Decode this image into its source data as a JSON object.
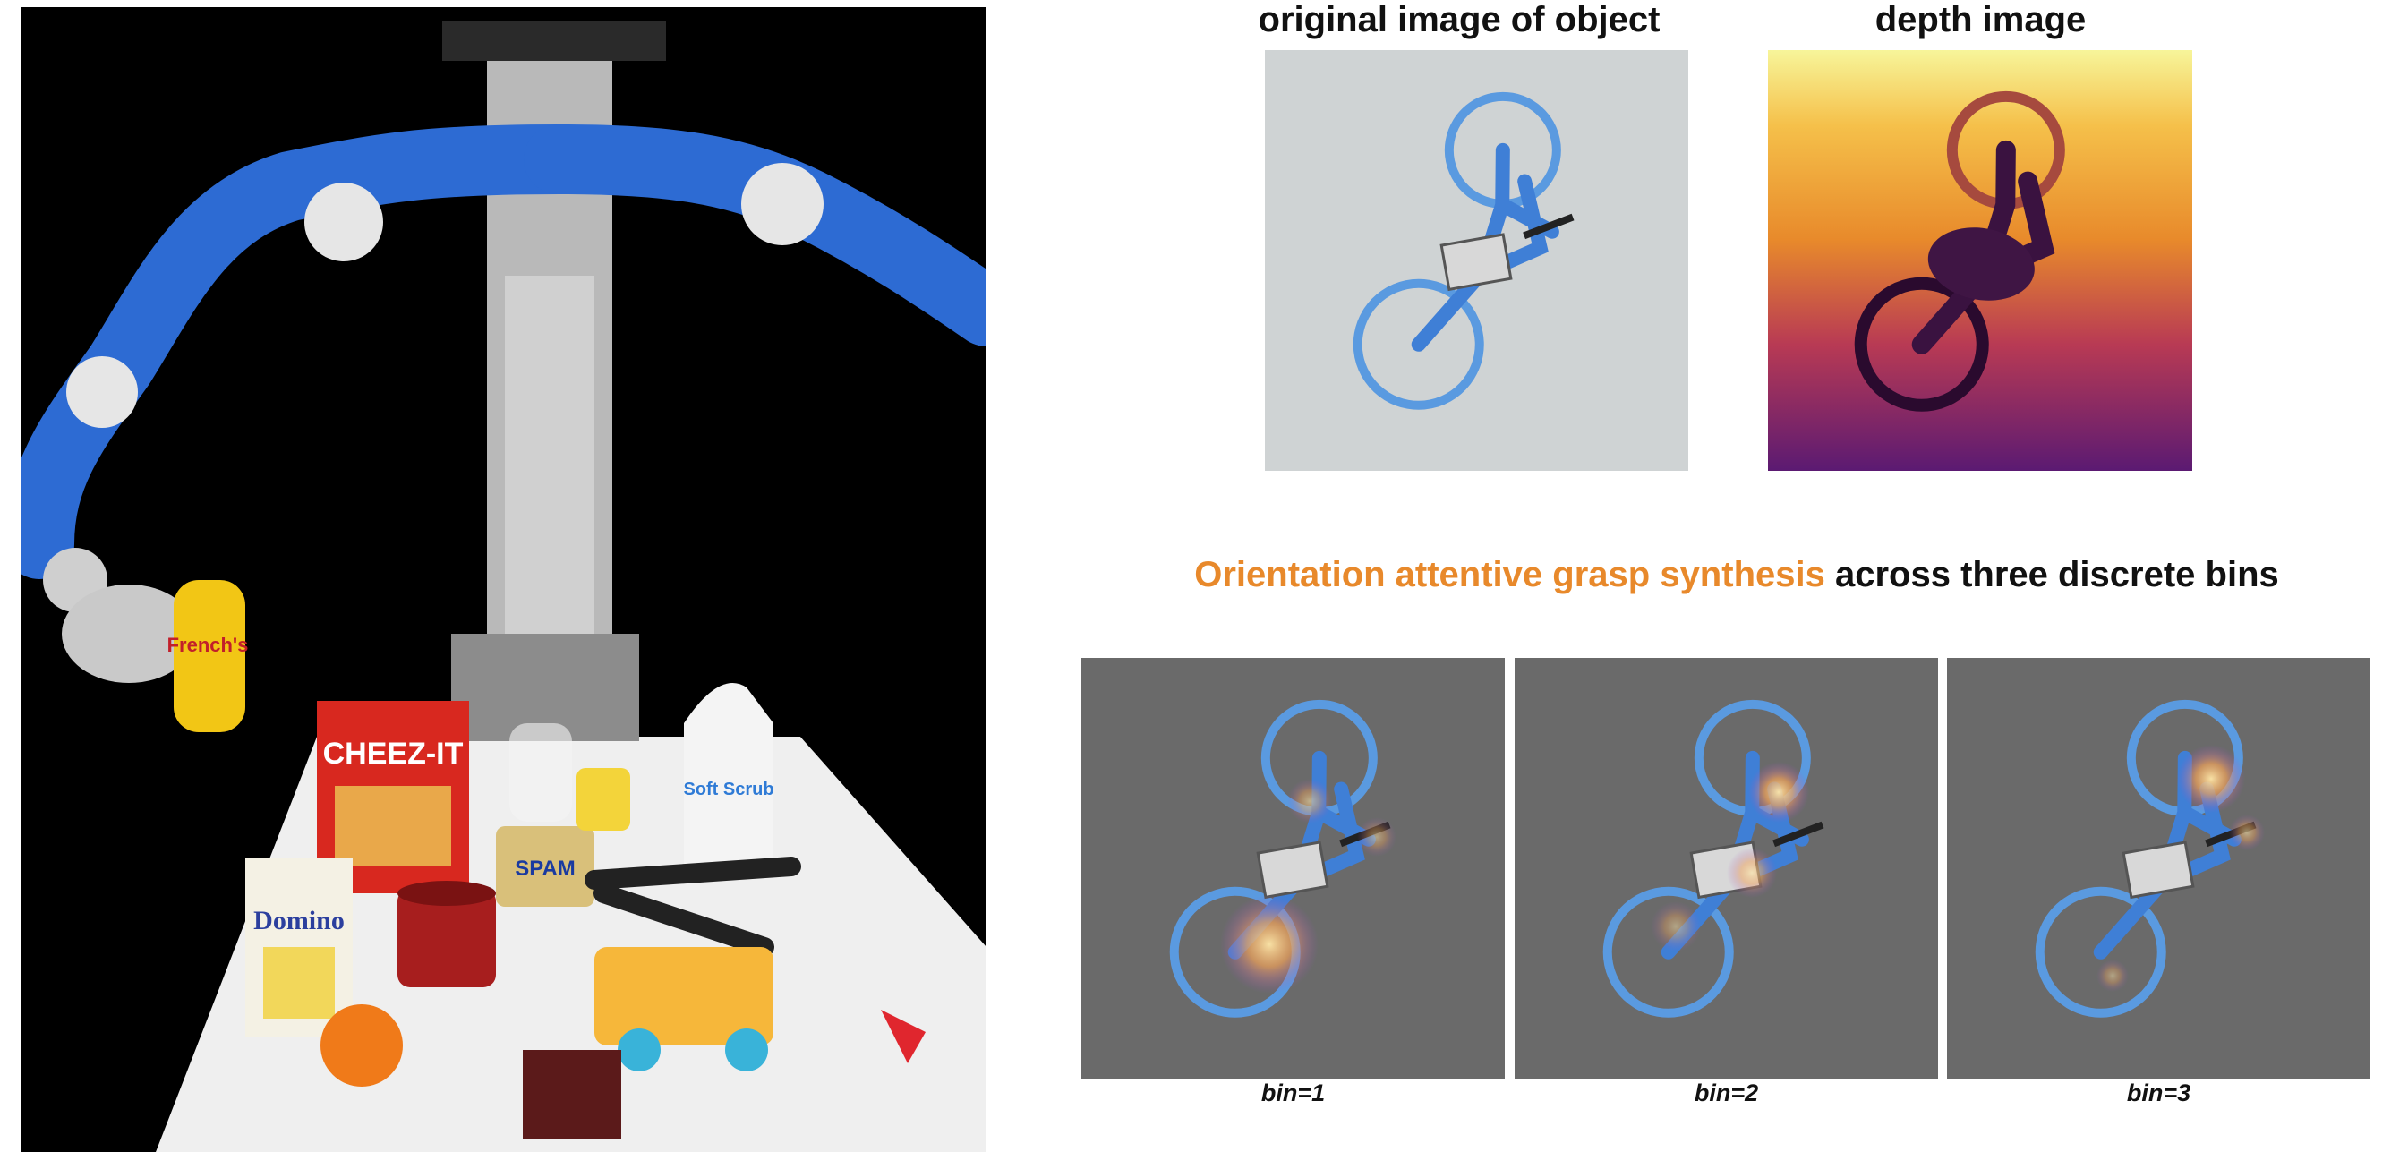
{
  "titles": {
    "original": "original image of object",
    "depth": "depth image"
  },
  "heading": {
    "highlight": "Orientation attentive grasp synthesis",
    "rest": " across three discrete bins"
  },
  "bins": [
    {
      "label": "bin=1"
    },
    {
      "label": "bin=2"
    },
    {
      "label": "bin=3"
    }
  ],
  "robot_photo": {
    "product_labels": {
      "mustard": "French's",
      "crackers": "CHEEZ-IT",
      "meat": "SPAM",
      "sugar": "Domino",
      "cleaner": "Soft Scrub"
    }
  },
  "colors": {
    "highlight": "#e8892b",
    "robot_blue": "#2d6bd3",
    "heatmap_bg": "#6a6a6a"
  }
}
